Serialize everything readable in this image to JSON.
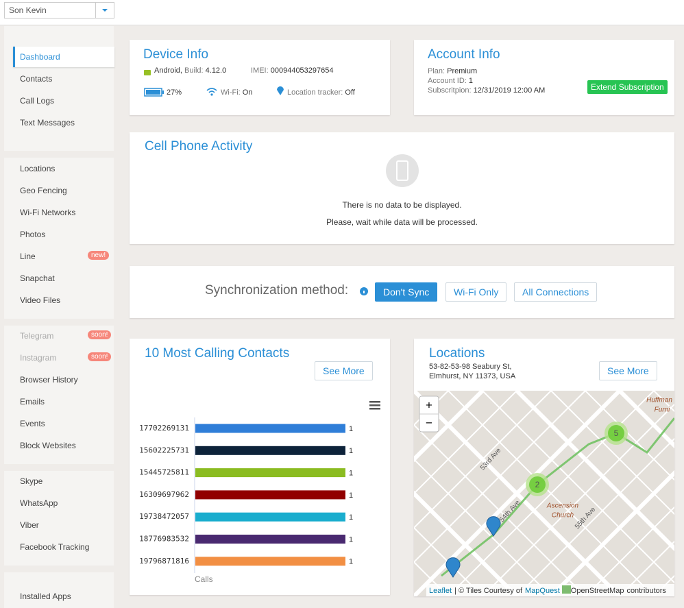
{
  "header": {
    "user": "Son Kevin"
  },
  "sidebar": {
    "groups": [
      [
        {
          "label": "Dashboard",
          "active": true
        },
        {
          "label": "Contacts"
        },
        {
          "label": "Call Logs"
        },
        {
          "label": "Text Messages"
        }
      ],
      [
        {
          "label": "Locations"
        },
        {
          "label": "Geo Fencing"
        },
        {
          "label": "Wi-Fi Networks"
        },
        {
          "label": "Photos"
        },
        {
          "label": "Line",
          "badge": "new!"
        },
        {
          "label": "Snapchat"
        },
        {
          "label": "Video Files"
        }
      ],
      [
        {
          "label": "Telegram",
          "badge": "soon!",
          "disabled": true
        },
        {
          "label": "Instagram",
          "badge": "soon!",
          "disabled": true
        },
        {
          "label": "Browser History"
        },
        {
          "label": "Emails"
        },
        {
          "label": "Events"
        },
        {
          "label": "Block Websites"
        }
      ],
      [
        {
          "label": "Skype"
        },
        {
          "label": "WhatsApp"
        },
        {
          "label": "Viber"
        },
        {
          "label": "Facebook Tracking"
        }
      ],
      [
        {
          "label": "Installed Apps"
        }
      ]
    ]
  },
  "device_info": {
    "title": "Device Info",
    "os": "Android,",
    "build_label": "Build:",
    "build": "4.12.0",
    "imei_label": "IMEI:",
    "imei": "000944053297654",
    "battery": "27%",
    "wifi_label": "Wi-Fi:",
    "wifi": "On",
    "location_label": "Location tracker:",
    "location": "Off"
  },
  "account_info": {
    "title": "Account Info",
    "plan_label": "Plan:",
    "plan": "Premium",
    "account_label": "Account ID:",
    "account": "1",
    "sub_label": "Subscritpion:",
    "sub": "12/31/2019 12:00 AM",
    "button": "Extend Subscription"
  },
  "activity": {
    "title": "Cell Phone Activity",
    "message1": "There is no data to be displayed.",
    "message2": "Please, wait while data will be processed."
  },
  "sync": {
    "label": "Synchronization method:",
    "buttons": [
      "Don't Sync",
      "Wi-Fi Only",
      "All Connections"
    ],
    "active": 0
  },
  "contacts": {
    "title": "10 Most Calling Contacts",
    "see_more": "See More"
  },
  "chart_data": {
    "type": "bar",
    "orientation": "horizontal",
    "categories": [
      "17702269131",
      "15602225731",
      "15445725811",
      "16309697962",
      "19738472057",
      "18776983532",
      "19796871816"
    ],
    "values": [
      1,
      1,
      1,
      1,
      1,
      1,
      1
    ],
    "colors": [
      "#2f7ed8",
      "#0d233a",
      "#8bbc21",
      "#910000",
      "#1aadce",
      "#492970",
      "#f28f43"
    ],
    "xlim": [
      0,
      1
    ],
    "x_label": "Calls"
  },
  "locations": {
    "title": "Locations",
    "address1": "53-82-53-98 Seabury St,",
    "address2": "Elmhurst, NY 11373, USA",
    "see_more": "See More",
    "map": {
      "zoom_in": "+",
      "zoom_out": "−",
      "clusters": [
        "2",
        "5"
      ],
      "streets": [
        "53rd Ave",
        "54th Ave",
        "55th Ave",
        "Ascension",
        "Church",
        "Huffman",
        "Furni"
      ],
      "attribution": [
        "Leaflet",
        "| © Tiles Courtesy of",
        "MapQuest",
        "OpenStreetMap",
        "contributors"
      ]
    }
  }
}
